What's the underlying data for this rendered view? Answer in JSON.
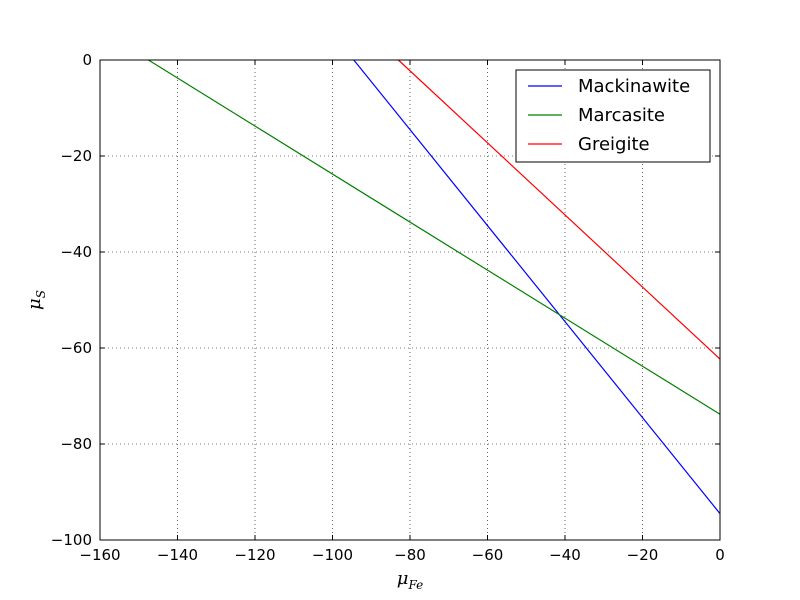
{
  "chart_data": {
    "type": "line",
    "title": "",
    "xlabel": {
      "base": "μ",
      "sub": "Fe"
    },
    "ylabel": {
      "base": "μ",
      "sub": "S"
    },
    "xlim": [
      -160,
      0
    ],
    "ylim": [
      -100,
      0
    ],
    "xticks": [
      -160,
      -140,
      -120,
      -100,
      -80,
      -60,
      -40,
      -20,
      0
    ],
    "yticks": [
      -100,
      -80,
      -60,
      -40,
      -20,
      0
    ],
    "xtick_labels": [
      "−160",
      "−140",
      "−120",
      "−100",
      "−80",
      "−60",
      "−40",
      "−20",
      "0"
    ],
    "ytick_labels": [
      "−100",
      "−80",
      "−60",
      "−40",
      "−20",
      "0"
    ],
    "grid": true,
    "legend_position": "top-right",
    "series": [
      {
        "name": "Mackinawite",
        "color": "#0000ff",
        "x": [
          -94.5,
          0
        ],
        "y": [
          0,
          -94.5
        ]
      },
      {
        "name": "Marcasite",
        "color": "#008000",
        "x": [
          -147.5,
          0
        ],
        "y": [
          0,
          -73.8
        ]
      },
      {
        "name": "Greigite",
        "color": "#ff0000",
        "x": [
          -83.0,
          0
        ],
        "y": [
          0,
          -62.3
        ]
      }
    ]
  }
}
